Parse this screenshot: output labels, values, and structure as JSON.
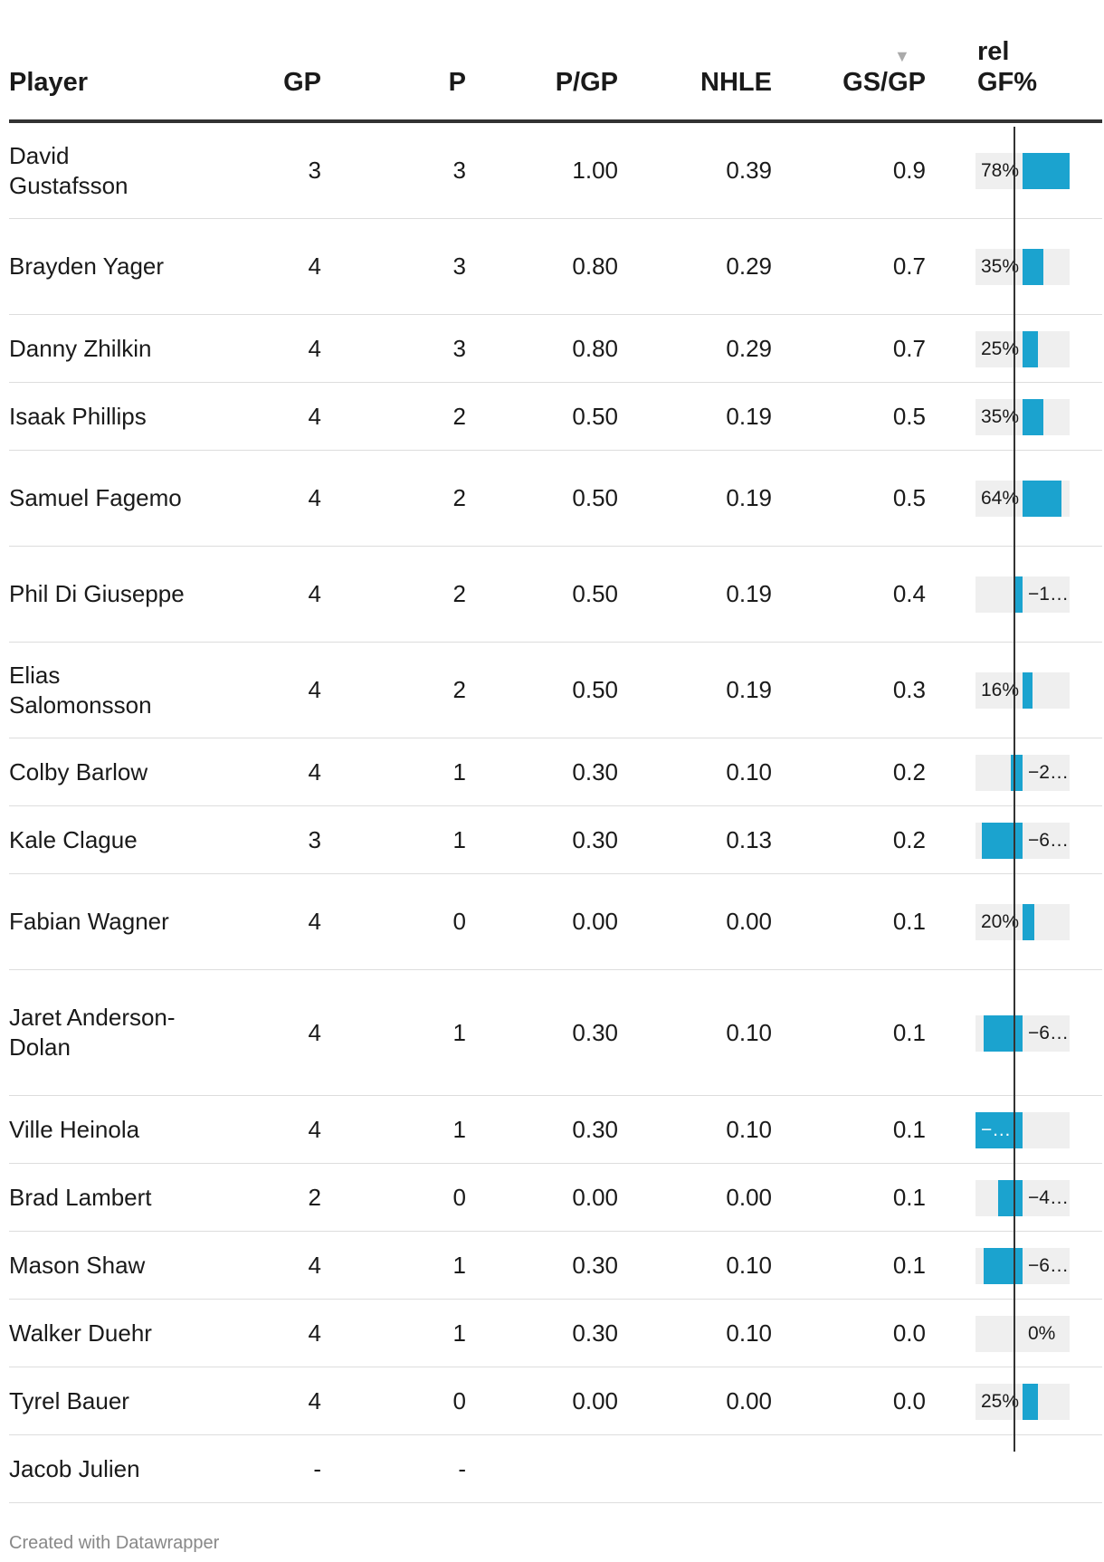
{
  "columns": {
    "player": "Player",
    "gp": "GP",
    "p": "P",
    "pgp": "P/GP",
    "nhle": "NHLE",
    "gsgp": "GS/GP",
    "relgf_line1": "rel",
    "relgf_line2": "GF%",
    "sort_indicator": "▼"
  },
  "rows": [
    {
      "player": "David Gustafsson",
      "gp": "3",
      "p": "3",
      "pgp": "1.00",
      "nhle": "0.39",
      "gsgp": "0.9",
      "relgf": 78,
      "relgf_label": "78%"
    },
    {
      "player": "Brayden Yager",
      "gp": "4",
      "p": "3",
      "pgp": "0.80",
      "nhle": "0.29",
      "gsgp": "0.7",
      "relgf": 35,
      "relgf_label": "35%"
    },
    {
      "player": "Danny Zhilkin",
      "gp": "4",
      "p": "3",
      "pgp": "0.80",
      "nhle": "0.29",
      "gsgp": "0.7",
      "relgf": 25,
      "relgf_label": "25%"
    },
    {
      "player": "Isaak Phillips",
      "gp": "4",
      "p": "2",
      "pgp": "0.50",
      "nhle": "0.19",
      "gsgp": "0.5",
      "relgf": 35,
      "relgf_label": "35%"
    },
    {
      "player": "Samuel Fagemo",
      "gp": "4",
      "p": "2",
      "pgp": "0.50",
      "nhle": "0.19",
      "gsgp": "0.5",
      "relgf": 64,
      "relgf_label": "64%"
    },
    {
      "player": "Phil Di Giuseppe",
      "gp": "4",
      "p": "2",
      "pgp": "0.50",
      "nhle": "0.19",
      "gsgp": "0.4",
      "relgf": -15,
      "relgf_label": "−1…"
    },
    {
      "player": "Elias Salomonsson",
      "gp": "4",
      "p": "2",
      "pgp": "0.50",
      "nhle": "0.19",
      "gsgp": "0.3",
      "relgf": 16,
      "relgf_label": "16%"
    },
    {
      "player": "Colby Barlow",
      "gp": "4",
      "p": "1",
      "pgp": "0.30",
      "nhle": "0.10",
      "gsgp": "0.2",
      "relgf": -20,
      "relgf_label": "−2…"
    },
    {
      "player": "Kale Clague",
      "gp": "3",
      "p": "1",
      "pgp": "0.30",
      "nhle": "0.13",
      "gsgp": "0.2",
      "relgf": -68,
      "relgf_label": "−6…"
    },
    {
      "player": "Fabian Wagner",
      "gp": "4",
      "p": "0",
      "pgp": "0.00",
      "nhle": "0.00",
      "gsgp": "0.1",
      "relgf": 20,
      "relgf_label": "20%"
    },
    {
      "player": "Jaret Anderson-Dolan",
      "gp": "4",
      "p": "1",
      "pgp": "0.30",
      "nhle": "0.10",
      "gsgp": "0.1",
      "relgf": -65,
      "relgf_label": "−6…"
    },
    {
      "player": "Ville Heinola",
      "gp": "4",
      "p": "1",
      "pgp": "0.30",
      "nhle": "0.10",
      "gsgp": "0.1",
      "relgf": -78,
      "relgf_label": "−…"
    },
    {
      "player": "Brad Lambert",
      "gp": "2",
      "p": "0",
      "pgp": "0.00",
      "nhle": "0.00",
      "gsgp": "0.1",
      "relgf": -40,
      "relgf_label": "−4…"
    },
    {
      "player": "Mason Shaw",
      "gp": "4",
      "p": "1",
      "pgp": "0.30",
      "nhle": "0.10",
      "gsgp": "0.1",
      "relgf": -65,
      "relgf_label": "−6…"
    },
    {
      "player": "Walker Duehr",
      "gp": "4",
      "p": "1",
      "pgp": "0.30",
      "nhle": "0.10",
      "gsgp": "0.0",
      "relgf": 0,
      "relgf_label": "0%"
    },
    {
      "player": "Tyrel Bauer",
      "gp": "4",
      "p": "0",
      "pgp": "0.00",
      "nhle": "0.00",
      "gsgp": "0.0",
      "relgf": 25,
      "relgf_label": "25%"
    },
    {
      "player": "Jacob Julien",
      "gp": "-",
      "p": "-",
      "pgp": "",
      "nhle": "",
      "gsgp": "",
      "relgf": null,
      "relgf_label": ""
    }
  ],
  "footer": "Created with Datawrapper",
  "colors": {
    "bar": "#1ba3cf",
    "bar_background": "#efefef",
    "zero_line": "#333333",
    "rule": "#333333",
    "row_divider": "#dddddd",
    "footer_text": "#888888"
  },
  "chart_data": {
    "type": "table",
    "columns": [
      "Player",
      "GP",
      "P",
      "P/GP",
      "NHLE",
      "GS/GP",
      "rel GF%"
    ],
    "sorted_by": "GS/GP",
    "sort_order": "descending",
    "bar_column": "rel GF%",
    "bar_range": [
      -78,
      78
    ],
    "series": [
      {
        "name": "rel GF%",
        "values": [
          78,
          35,
          25,
          35,
          64,
          -15,
          16,
          -20,
          -68,
          20,
          -65,
          -78,
          -40,
          -65,
          0,
          25,
          null
        ]
      }
    ]
  }
}
